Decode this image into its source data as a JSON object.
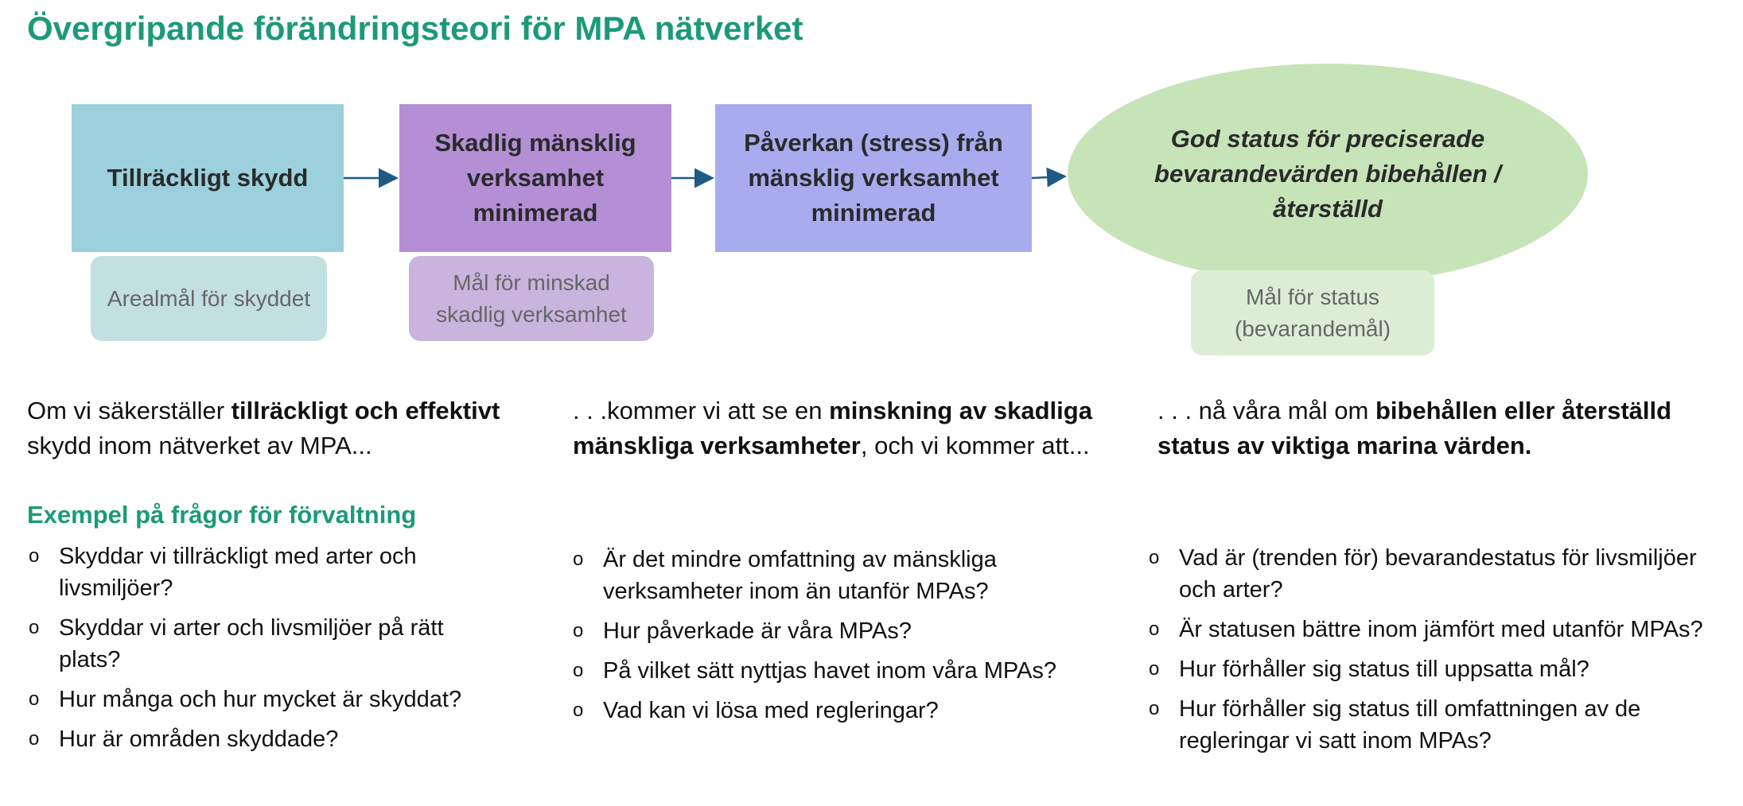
{
  "title": "Övergripande förändringsteori för MPA nätverket",
  "chain": {
    "box1": "Tillräckligt skydd",
    "box2": "Skadlig mänsklig verksamhet minimerad",
    "box3": "Påverkan (stress) från mänsklig verksamhet minimerad",
    "outcome": "God status för preciserade bevarandevärden bibehållen / återställd"
  },
  "goals": {
    "goal1": "Arealmål för skyddet",
    "goal2": "Mål för minskad skadlig verksamhet",
    "goal3": "Mål för status (bevarandemål)"
  },
  "intro": {
    "col1": {
      "pre": "Om vi säkerställer ",
      "bold": "tillräckligt och effektivt",
      "post": " skydd inom nätverket av MPA..."
    },
    "col2": {
      "pre": ". . .kommer vi att se en ",
      "bold": "minskning av skadliga mänskliga verksamheter",
      "post": ", och vi kommer att..."
    },
    "col3": {
      "pre": ". . .  nå våra mål om ",
      "bold": "bibehållen eller återställd status av viktiga marina värden."
    }
  },
  "examples_heading": "Exempel på frågor för förvaltning",
  "bullet_symbol": "o",
  "questions": {
    "col1": [
      "Skyddar vi tillräckligt med arter och livsmiljöer?",
      "Skyddar vi arter och livsmiljöer på rätt plats?",
      "Hur många och hur mycket är skyddat?",
      "Hur är områden skyddade?"
    ],
    "col2": [
      "Är det mindre omfattning av mänskliga verksamheter inom än utanför MPAs?",
      "Hur påverkade är våra MPAs?",
      "På vilket sätt nyttjas havet inom våra MPAs?",
      "Vad kan vi lösa med regleringar?"
    ],
    "col3": [
      "Vad är (trenden för) bevarandestatus för livsmiljöer och arter?",
      "Är statusen bättre inom jämfört med utanför MPAs?",
      "Hur förhåller sig status till uppsatta mål?",
      "Hur förhåller sig status till omfattningen av de regleringar vi satt inom MPAs?"
    ]
  },
  "colors": {
    "heading": "#1c9a78",
    "box1": "#9bd0dc",
    "box2": "#b48fd6",
    "box3": "#a8acee",
    "outcome": "#c6e4b8",
    "arrow": "#1f5a86"
  }
}
